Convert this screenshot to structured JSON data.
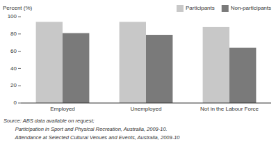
{
  "chart_data": {
    "type": "bar",
    "categories": [
      "Employed",
      "Unemployed",
      "Not in the Labour Force"
    ],
    "series": [
      {
        "name": "Participants",
        "color": "#c8c8c8",
        "values": [
          94,
          94,
          88
        ]
      },
      {
        "name": "Non-participants",
        "color": "#7a7a7a",
        "values": [
          81,
          79,
          64
        ]
      }
    ],
    "y_label": "Percent (%)",
    "ylim": [
      0,
      100
    ],
    "yticks": [
      0,
      20,
      40,
      60,
      80,
      100
    ],
    "grid": false,
    "legend": "upper right",
    "annotations": [
      "Source: ABS data available on request;",
      "        Participation in Sport and Physical Recreation, Australia, 2009-10.",
      "        Attendance at Selected Cultural Venues and Events, Australia, 2009-10"
    ]
  }
}
